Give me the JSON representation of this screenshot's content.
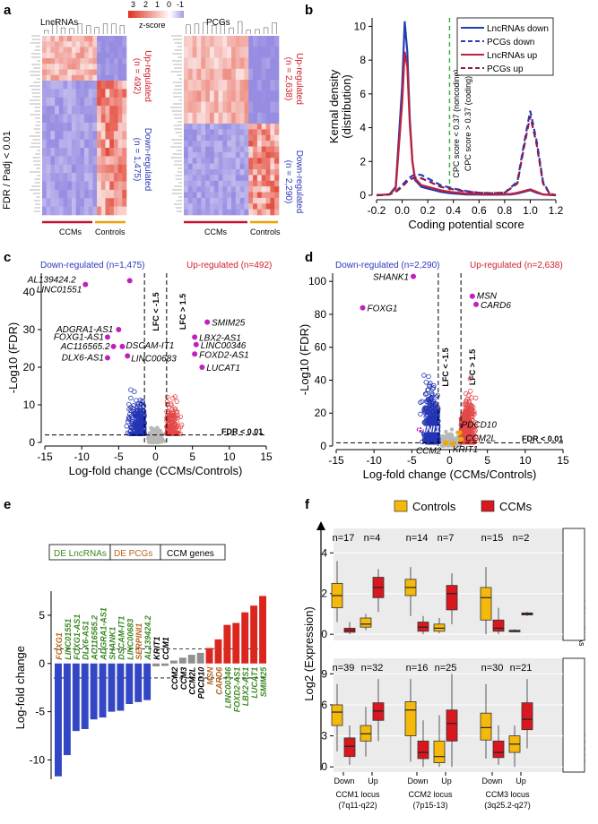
{
  "panels": {
    "a": {
      "letter": "a",
      "left_title": "LncRNAs",
      "right_title": "PCGs",
      "scale_ticks": [
        "3",
        "2",
        "1",
        "0",
        "-1"
      ],
      "scale_label": "z-score",
      "ylabel": "FDR / Padj < 0.01",
      "left_up": [
        "Up-regulated",
        "(n = 492)"
      ],
      "left_down": [
        "Down-regulated",
        "(n = 1,475)"
      ],
      "right_up": [
        "Up-regulated",
        "(n = 2,638)"
      ],
      "right_down": [
        "Down-regulated",
        "(n = 2,290)"
      ],
      "group1": "CCMs",
      "group2": "Controls",
      "colors": {
        "high": "#e0301e",
        "mid": "#ffffff",
        "low": "#5a4fcf"
      }
    },
    "b": {
      "letter": "b",
      "vline_text1": "CPC score < 0.37 (noncoding)",
      "vline_text2": "CPC score > 0.37 (coding)"
    },
    "c": {
      "letter": "c",
      "down_label": "Down-regulated (n=1,475)",
      "up_label": "Up-regulated (n=492)",
      "lfc_neg": "LFC < -1.5",
      "lfc_pos": "LFC > 1.5",
      "fdr": "FDR < 0.01"
    },
    "d": {
      "letter": "d",
      "down_label": "Down-regulated (n=2,290)",
      "up_label": "Up-regulated (n=2,638)",
      "lfc_neg": "LFC < -1.5",
      "lfc_pos": "LFC > 1.5",
      "fdr": "FDR < 0.01"
    },
    "e": {
      "letter": "e",
      "legend": [
        "DE LncRNAs",
        "DE PCGs",
        "CCM genes"
      ]
    },
    "f": {
      "letter": "f",
      "strip_top": "DE LncRNAs",
      "strip_bottom": "DE PCGs",
      "loci": [
        [
          "CCM1 locus",
          "(7q11-q22)"
        ],
        [
          "CCM2 locus",
          "(7p15-13)"
        ],
        [
          "CCM3 locus",
          "(3q25.2-q27)"
        ]
      ],
      "group_labels": [
        "Down",
        "Up"
      ]
    }
  },
  "chart_data": [
    {
      "panel": "b",
      "type": "line",
      "title": "",
      "xlabel": "Coding potential score",
      "ylabel": "Kernal density\n(distribution)",
      "xlim": [
        -0.2,
        1.2
      ],
      "ylim": [
        0,
        10.5
      ],
      "xticks": [
        "-0.2",
        "0.0",
        "0.2",
        "0.4",
        "0.6",
        "0.8",
        "1.0",
        "1.2"
      ],
      "yticks": [
        "0",
        "2",
        "4",
        "6",
        "8",
        "10"
      ],
      "vline": 0.37,
      "legend": "top-right",
      "series": [
        {
          "name": "LncRNAs down",
          "color": "#1f3fb4",
          "dash": false,
          "x": [
            -0.2,
            -0.1,
            -0.05,
            0,
            0.02,
            0.04,
            0.06,
            0.08,
            0.1,
            0.15,
            0.2,
            0.25,
            0.3,
            0.37,
            0.5,
            0.7,
            0.85,
            0.9,
            0.95,
            1.0,
            1.05,
            1.1,
            1.2
          ],
          "y": [
            0,
            0.05,
            0.5,
            6.5,
            10.3,
            8.5,
            4.5,
            2.0,
            0.9,
            0.5,
            0.4,
            0.3,
            0.2,
            0.12,
            0.05,
            0.03,
            0.05,
            0.1,
            0.2,
            0.3,
            0.15,
            0.05,
            0
          ]
        },
        {
          "name": "PCGs down",
          "color": "#1f3fb4",
          "dash": true,
          "x": [
            -0.2,
            -0.1,
            -0.05,
            0,
            0.05,
            0.1,
            0.15,
            0.2,
            0.3,
            0.4,
            0.5,
            0.6,
            0.7,
            0.8,
            0.9,
            0.95,
            1.0,
            1.05,
            1.1,
            1.15,
            1.2
          ],
          "y": [
            0,
            0.05,
            0.2,
            0.6,
            1.0,
            1.25,
            1.2,
            1.0,
            0.6,
            0.4,
            0.25,
            0.15,
            0.12,
            0.15,
            0.8,
            3.0,
            5.0,
            3.2,
            0.8,
            0.1,
            0
          ]
        },
        {
          "name": "LncRNAs up",
          "color": "#c0213a",
          "dash": false,
          "x": [
            -0.2,
            -0.1,
            -0.05,
            0,
            0.02,
            0.04,
            0.06,
            0.08,
            0.1,
            0.15,
            0.2,
            0.25,
            0.3,
            0.37,
            0.5,
            0.7,
            0.85,
            0.9,
            0.95,
            1.0,
            1.05,
            1.1,
            1.2
          ],
          "y": [
            0,
            0.05,
            0.4,
            5.5,
            8.5,
            7.6,
            4.2,
            2.0,
            1.0,
            0.6,
            0.5,
            0.4,
            0.3,
            0.2,
            0.1,
            0.05,
            0.08,
            0.15,
            0.25,
            0.35,
            0.2,
            0.05,
            0
          ]
        },
        {
          "name": "PCGs up",
          "color": "#8b1a52",
          "dash": true,
          "x": [
            -0.2,
            -0.1,
            -0.05,
            0,
            0.05,
            0.1,
            0.15,
            0.2,
            0.3,
            0.4,
            0.5,
            0.6,
            0.7,
            0.8,
            0.9,
            0.95,
            1.0,
            1.05,
            1.1,
            1.15,
            1.2
          ],
          "y": [
            0,
            0.05,
            0.2,
            0.5,
            0.9,
            1.05,
            1.0,
            0.85,
            0.5,
            0.35,
            0.22,
            0.15,
            0.12,
            0.15,
            0.7,
            2.8,
            4.7,
            3.0,
            0.7,
            0.1,
            0
          ]
        }
      ]
    },
    {
      "panel": "c",
      "type": "scatter",
      "title": "",
      "xlabel": "Log-fold change (CCMs/Controls)",
      "ylabel": "-Log10 (FDR)",
      "xlim": [
        -15,
        15
      ],
      "ylim": [
        0,
        45
      ],
      "xticks": [
        "-15",
        "-10",
        "-5",
        "0",
        "5",
        "10",
        "15"
      ],
      "yticks": [
        "0",
        "10",
        "20",
        "30",
        "40"
      ],
      "lfc_lines": [
        -1.5,
        1.5
      ],
      "fdr_line": 2,
      "highlighted": [
        {
          "label": "AL139424.2",
          "x": -3.5,
          "y": 43.0
        },
        {
          "label": "LINC01551",
          "x": -9.5,
          "y": 42.0
        },
        {
          "label": "ADGRA1-AS1",
          "x": -5.0,
          "y": 30.0
        },
        {
          "label": "FOXG1-AS1",
          "x": -6.5,
          "y": 28.0
        },
        {
          "label": "AC116565.2",
          "x": -5.7,
          "y": 25.5
        },
        {
          "label": "DSCAM-IT1",
          "x": -4.5,
          "y": 25.5
        },
        {
          "label": "LINC00683",
          "x": -3.8,
          "y": 23.0
        },
        {
          "label": "DLX6-AS1",
          "x": -6.5,
          "y": 22.5
        },
        {
          "label": "SMIM25",
          "x": 7.0,
          "y": 32.0
        },
        {
          "label": "LBX2-AS1",
          "x": 5.3,
          "y": 28.0
        },
        {
          "label": "LINC00346",
          "x": 5.5,
          "y": 26.0
        },
        {
          "label": "FOXD2-AS1",
          "x": 5.3,
          "y": 23.5
        },
        {
          "label": "LUCAT1",
          "x": 6.3,
          "y": 20.0
        }
      ]
    },
    {
      "panel": "d",
      "type": "scatter",
      "title": "",
      "xlabel": "Log-fold change (CCMs/Controls)",
      "ylabel": "-Log10 (FDR)",
      "xlim": [
        -15,
        15
      ],
      "ylim": [
        0,
        105
      ],
      "xticks": [
        "-15",
        "-10",
        "-5",
        "0",
        "5",
        "10",
        "15"
      ],
      "yticks": [
        "0",
        "20",
        "40",
        "60",
        "80",
        "100"
      ],
      "lfc_lines": [
        -1.5,
        1.5
      ],
      "fdr_line": 2,
      "highlighted": [
        {
          "label": "SHANK1",
          "x": -4.8,
          "y": 103.0
        },
        {
          "label": "FOXG1",
          "x": -11.5,
          "y": 84.0
        },
        {
          "label": "MSN",
          "x": 3.0,
          "y": 91.0
        },
        {
          "label": "CARD6",
          "x": 3.5,
          "y": 86.0
        },
        {
          "label": "SERPINI1",
          "x": -4.0,
          "y": 10.0
        },
        {
          "label": "PDCD10",
          "x": 1.3,
          "y": 8.0
        },
        {
          "label": "CCM2L",
          "x": 1.5,
          "y": 4.0
        },
        {
          "label": "CCM2",
          "x": -0.5,
          "y": 2.0
        },
        {
          "label": "KRIT1",
          "x": 0.4,
          "y": 1.5
        }
      ]
    },
    {
      "panel": "e",
      "type": "bar",
      "title": "",
      "xlabel": "",
      "ylabel": "Log-fold change",
      "ylim": [
        -12,
        7.5
      ],
      "yticks": [
        "-10",
        "-5",
        "0",
        "5"
      ],
      "thresholds": [
        1.5,
        -1.5
      ],
      "categories": [
        "FOXG1",
        "LINC01551",
        "FOXG1-AS1",
        "DLX6-AS1",
        "AC116565.2",
        "ADGRA1-AS1",
        "SHANK1",
        "DSCAM-IT1",
        "LINC00683",
        "SERPINI1",
        "AL139424.2",
        "KRIT1",
        "CCM1",
        "CCM2",
        "CCM3",
        "CCM2L",
        "PDCD10",
        "MSN",
        "CARD6",
        "LINC00346",
        "FOXD2-AS1",
        "LBX2-AS1",
        "LUCAT1",
        "SMIM25"
      ],
      "values": [
        -11.7,
        -9.5,
        -7.0,
        -6.8,
        -5.8,
        -5.6,
        -5.0,
        -4.9,
        -4.2,
        -4.0,
        -3.8,
        -0.3,
        -0.25,
        0.3,
        0.6,
        0.9,
        1.1,
        1.6,
        2.5,
        4.0,
        4.2,
        5.3,
        6.0,
        7.0
      ],
      "groups": [
        "pcg",
        "lnc",
        "lnc",
        "lnc",
        "lnc",
        "lnc",
        "lnc",
        "lnc",
        "lnc",
        "pcg",
        "lnc",
        "ccm",
        "ccm",
        "ccm",
        "ccm",
        "ccm",
        "ccm",
        "pcg",
        "pcg",
        "lnc",
        "lnc",
        "lnc",
        "lnc",
        "lnc"
      ]
    },
    {
      "panel": "f",
      "type": "box",
      "title": "",
      "xlabel": "",
      "ylabel": "Log2 (Expression)",
      "legend_entries": [
        "Controls",
        "CCMs"
      ],
      "legend": "top",
      "colors": {
        "Controls": "#f5b90c",
        "CCMs": "#d8171f"
      },
      "rows": [
        {
          "name": "DE LncRNAs",
          "ylim": [
            -0.3,
            5.2
          ],
          "yticks": [
            "0",
            "2",
            "4"
          ],
          "boxes": [
            {
              "n": "n=17",
              "ctrl": [
                0.6,
                1.3,
                1.9,
                2.5,
                3.6
              ],
              "ccm": [
                0,
                0.1,
                0.2,
                0.3,
                0.6
              ]
            },
            {
              "n": "n=4",
              "ctrl": [
                0.2,
                0.35,
                0.5,
                0.8,
                1.0
              ],
              "ccm": [
                1.1,
                1.8,
                2.3,
                2.8,
                3.2
              ]
            },
            {
              "n": "n=14",
              "ctrl": [
                0.9,
                1.9,
                2.3,
                2.7,
                3.3
              ],
              "ccm": [
                0,
                0.15,
                0.35,
                0.6,
                0.9
              ]
            },
            {
              "n": "n=7",
              "ctrl": [
                0.05,
                0.15,
                0.3,
                0.5,
                0.8
              ],
              "ccm": [
                0.5,
                1.2,
                2.0,
                2.4,
                3.0
              ]
            },
            {
              "n": "n=15",
              "ctrl": [
                0,
                0.7,
                1.8,
                2.3,
                3.3
              ],
              "ccm": [
                0,
                0.15,
                0.3,
                0.7,
                1.3
              ]
            },
            {
              "n": "n=2",
              "ctrl": [
                0.1,
                0.12,
                0.15,
                0.2,
                0.25
              ],
              "ccm": [
                0.9,
                0.95,
                1.0,
                1.05,
                1.1
              ]
            }
          ]
        },
        {
          "name": "DE PCGs",
          "ylim": [
            -0.5,
            10.5
          ],
          "yticks": [
            "0",
            "3",
            "6",
            "9"
          ],
          "boxes": [
            {
              "n": "n=39",
              "ctrl": [
                1.5,
                4.0,
                5.3,
                6.0,
                8.0
              ],
              "ccm": [
                0.2,
                1.0,
                2.0,
                2.8,
                4.0
              ]
            },
            {
              "n": "n=32",
              "ctrl": [
                1.0,
                2.5,
                3.2,
                4.0,
                5.8
              ],
              "ccm": [
                2.5,
                4.5,
                5.4,
                6.2,
                8.5
              ]
            },
            {
              "n": "n=16",
              "ctrl": [
                0.5,
                3.0,
                5.5,
                6.3,
                8.5
              ],
              "ccm": [
                0,
                0.8,
                1.4,
                2.5,
                4.5
              ]
            },
            {
              "n": "n=25",
              "ctrl": [
                0,
                0.4,
                1.0,
                2.5,
                5.0
              ],
              "ccm": [
                0,
                2.5,
                4.2,
                5.5,
                9.0
              ]
            },
            {
              "n": "n=30",
              "ctrl": [
                0.8,
                2.6,
                3.8,
                5.2,
                8.0
              ],
              "ccm": [
                0.2,
                0.9,
                1.4,
                2.5,
                4.0
              ]
            },
            {
              "n": "n=21",
              "ctrl": [
                0,
                1.4,
                2.2,
                3.0,
                4.0
              ],
              "ccm": [
                1.8,
                3.6,
                4.6,
                6.2,
                8.5
              ]
            }
          ]
        }
      ]
    }
  ]
}
